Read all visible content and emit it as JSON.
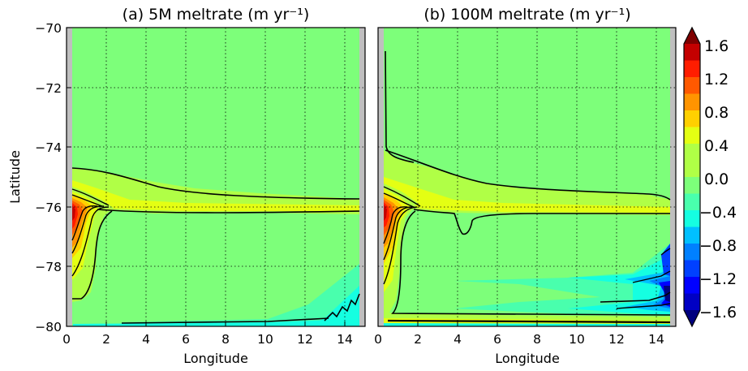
{
  "chart_data": [
    {
      "type": "heatmap",
      "title": "(a) 5M meltrate (m yr⁻¹)",
      "xlabel": "Longitude",
      "ylabel": "Latitude",
      "xlim": [
        0,
        15
      ],
      "ylim": [
        -80,
        -70
      ],
      "xticks": [
        "0",
        "2",
        "4",
        "6",
        "8",
        "10",
        "12",
        "14"
      ],
      "yticks": [
        "−70",
        "−72",
        "−74",
        "−76",
        "−78",
        "−80"
      ],
      "grid": true,
      "background_value": 0.0,
      "features": [
        {
          "label": "peak melt along western boundary",
          "lon": 0.4,
          "lat": -76.2,
          "value": 1.5
        },
        {
          "label": "melt tongue along 76S",
          "lon_range": [
            0,
            14.7
          ],
          "lat_range": [
            -76.2,
            -74.7
          ],
          "value": 0.15
        },
        {
          "label": "refreezing band in south-east",
          "lon_range": [
            2,
            14.7
          ],
          "lat_range": [
            -80,
            -77.8
          ],
          "value": -0.3
        }
      ]
    },
    {
      "type": "heatmap",
      "title": "(b) 100M meltrate (m yr⁻¹)",
      "xlabel": "Longitude",
      "ylabel": "",
      "xlim": [
        0,
        15
      ],
      "ylim": [
        -80,
        -70
      ],
      "xticks": [
        "0",
        "2",
        "4",
        "6",
        "8",
        "10",
        "12",
        "14"
      ],
      "yticks": [],
      "grid": true,
      "background_value": 0.0,
      "features": [
        {
          "label": "peak melt along western boundary",
          "lon": 0.4,
          "lat": -76.2,
          "value": 1.5
        },
        {
          "label": "melt tongue along 76S",
          "lon_range": [
            0,
            14.7
          ],
          "lat_range": [
            -76.2,
            -74.6
          ],
          "value": 0.15
        },
        {
          "label": "strong refreezing tongues",
          "lon": 14.5,
          "lat": -79.2,
          "value": -1.4
        },
        {
          "label": "southern boundary melt band",
          "lon_range": [
            0,
            14.7
          ],
          "lat_range": [
            -80,
            -79.7
          ],
          "value": 0.1
        }
      ]
    }
  ],
  "colorbar": {
    "ticks": [
      "1.6",
      "1.2",
      "0.8",
      "0.4",
      "0.0",
      "−0.4",
      "−0.8",
      "−1.2",
      "−1.6"
    ],
    "range": [
      -1.6,
      1.6
    ],
    "levels": 16,
    "extend": "both",
    "colormap": [
      "#00007f",
      "#0000c4",
      "#0000ff",
      "#0040ff",
      "#0080ff",
      "#00c0ff",
      "#15ffe1",
      "#49ffad",
      "#7dff7a",
      "#b0ff46",
      "#e4ff13",
      "#ffd000",
      "#ff9400",
      "#ff5900",
      "#ff1d00",
      "#c40000",
      "#7f0000"
    ]
  }
}
